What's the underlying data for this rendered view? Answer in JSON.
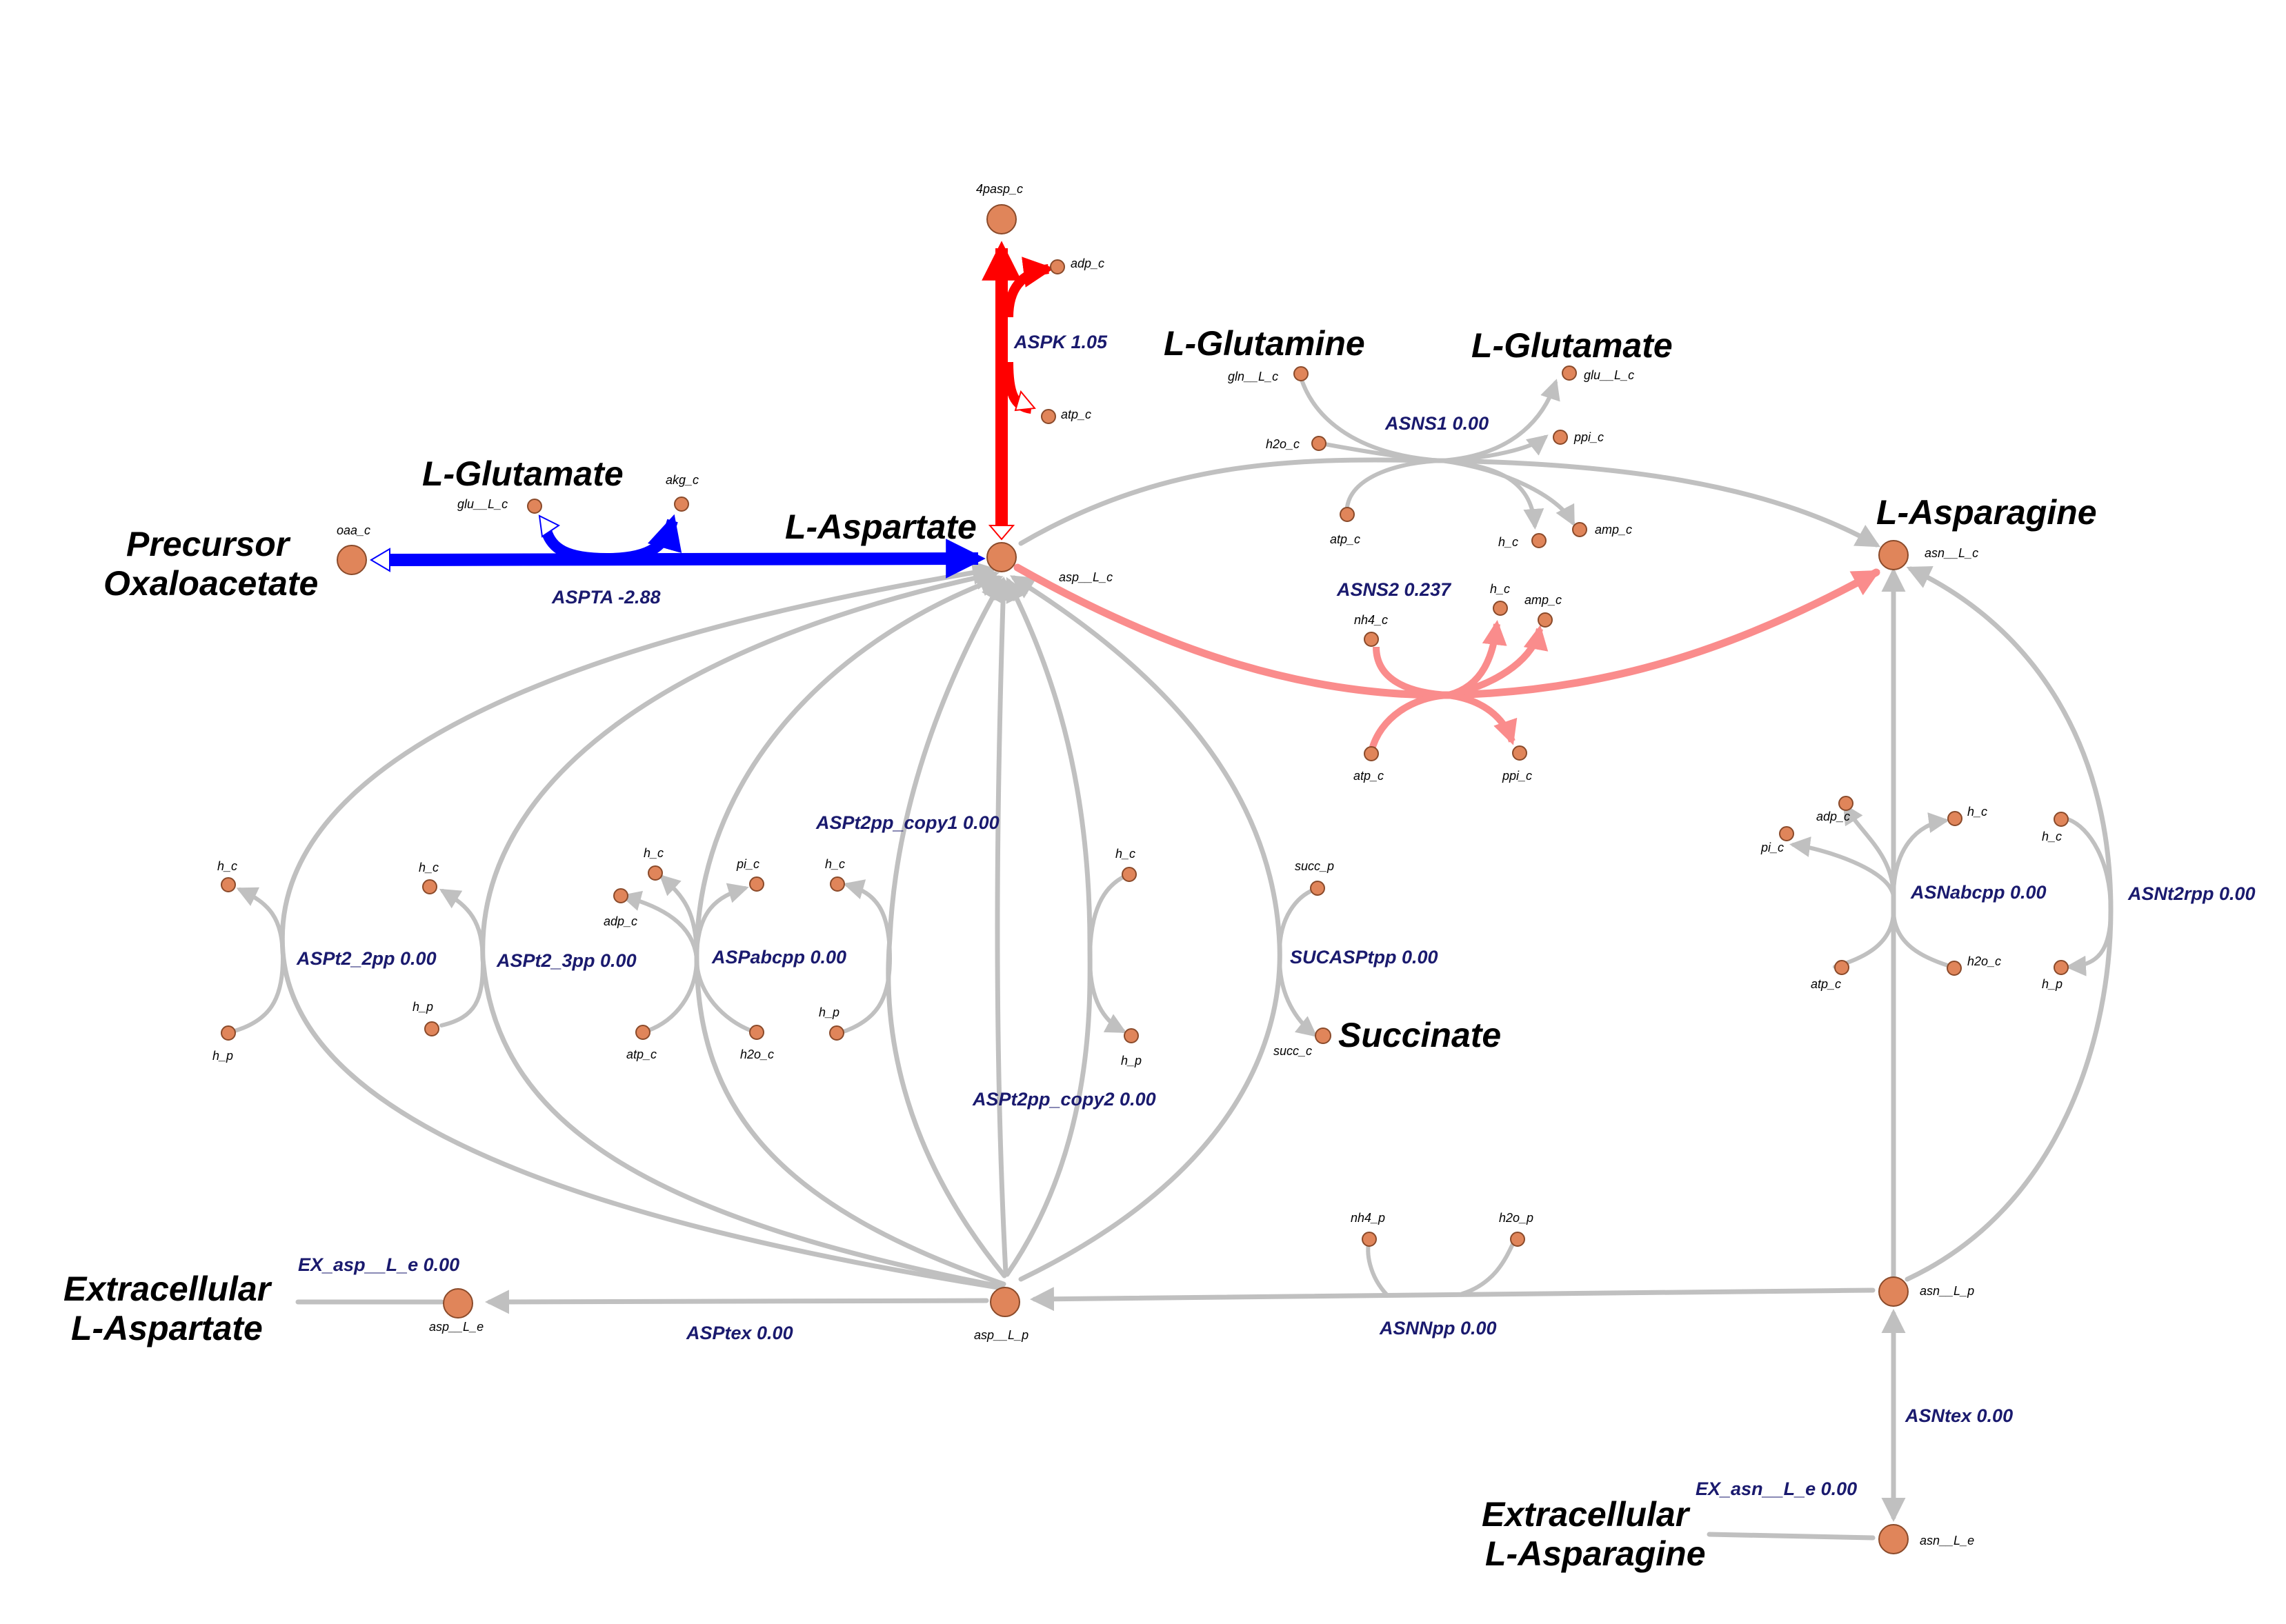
{
  "colors": {
    "inactive": "#c0c0c0",
    "negative_flux": "#0000ff",
    "high_flux": "#ff0000",
    "medium_flux": "#fa8c8c",
    "node_fill": "#e0855a",
    "reaction_label": "#1a1a6e"
  },
  "big_labels": {
    "l_glutamate_left": "L-Glutamate",
    "precursor_line1": "Precursor",
    "precursor_line2": "Oxaloacetate",
    "l_aspartate": "L-Aspartate",
    "l_glutamine": "L-Glutamine",
    "l_glutamate_right": "L-Glutamate",
    "l_asparagine": "L-Asparagine",
    "succinate": "Succinate",
    "ext_asp_line1": "Extracellular",
    "ext_asp_line2": "L-Aspartate",
    "ext_asn_line1": "Extracellular",
    "ext_asn_line2": "L-Asparagine"
  },
  "reactions": {
    "aspta": "ASPTA -2.88",
    "aspk": "ASPK 1.05",
    "asns1": "ASNS1 0.00",
    "asns2": "ASNS2 0.237",
    "aspt2pp_copy1": "ASPt2pp_copy1 0.00",
    "aspt2pp_copy2": "ASPt2pp_copy2 0.00",
    "aspt2_2pp": "ASPt2_2pp 0.00",
    "aspt2_3pp": "ASPt2_3pp 0.00",
    "aspabcpp": "ASPabcpp 0.00",
    "sucasptpp": "SUCASPtpp 0.00",
    "asnabcpp": "ASNabcpp 0.00",
    "asnt2rpp": "ASNt2rpp 0.00",
    "ex_asp": "EX_asp__L_e 0.00",
    "asptex": "ASPtex 0.00",
    "asnnpp": "ASNNpp 0.00",
    "asntex": "ASNtex 0.00",
    "ex_asn": "EX_asn__L_e 0.00"
  },
  "metabolites": {
    "p4asp_c": "4pasp_c",
    "adp_c_aspk": "adp_c",
    "atp_c_aspk": "atp_c",
    "glu_c_aspta": "glu__L_c",
    "akg_c": "akg_c",
    "oaa_c": "oaa_c",
    "asp_c": "asp__L_c",
    "gln_c": "gln__L_c",
    "glu_c_asns1": "glu__L_c",
    "h2o_c_asns1": "h2o_c",
    "ppi_c_asns1": "ppi_c",
    "atp_c_asns1": "atp_c",
    "h_c_asns1": "h_c",
    "amp_c_asns1": "amp_c",
    "asn_c": "asn__L_c",
    "nh4_c": "nh4_c",
    "h_c_asns2": "h_c",
    "amp_c_asns2": "amp_c",
    "atp_c_asns2": "atp_c",
    "ppi_c_asns2": "ppi_c",
    "h_c_2pp": "h_c",
    "h_p_2pp": "h_p",
    "h_c_3pp": "h_c",
    "h_p_3pp": "h_p",
    "h_c_abc": "h_c",
    "adp_c_abc": "adp_c",
    "pi_c_abc": "pi_c",
    "atp_c_abc": "atp_c",
    "h2o_c_abc": "h2o_c",
    "h_c_copy1": "h_c",
    "h_p_copy1": "h_p",
    "h_c_copy2": "h_c",
    "h_p_copy2": "h_p",
    "succ_p": "succ_p",
    "succ_c": "succ_c",
    "adp_c_asnabc": "adp_c",
    "pi_c_asnabc": "pi_c",
    "h_c_asnabc": "h_c",
    "atp_c_asnabc": "atp_c",
    "h2o_c_asnabc": "h2o_c",
    "h_c_asnt2": "h_c",
    "h_p_asnt2": "h_p",
    "asp_e": "asp__L_e",
    "asp_p": "asp__L_p",
    "nh4_p": "nh4_p",
    "h2o_p": "h2o_p",
    "asn_p": "asn__L_p",
    "asn_e": "asn__L_e"
  }
}
